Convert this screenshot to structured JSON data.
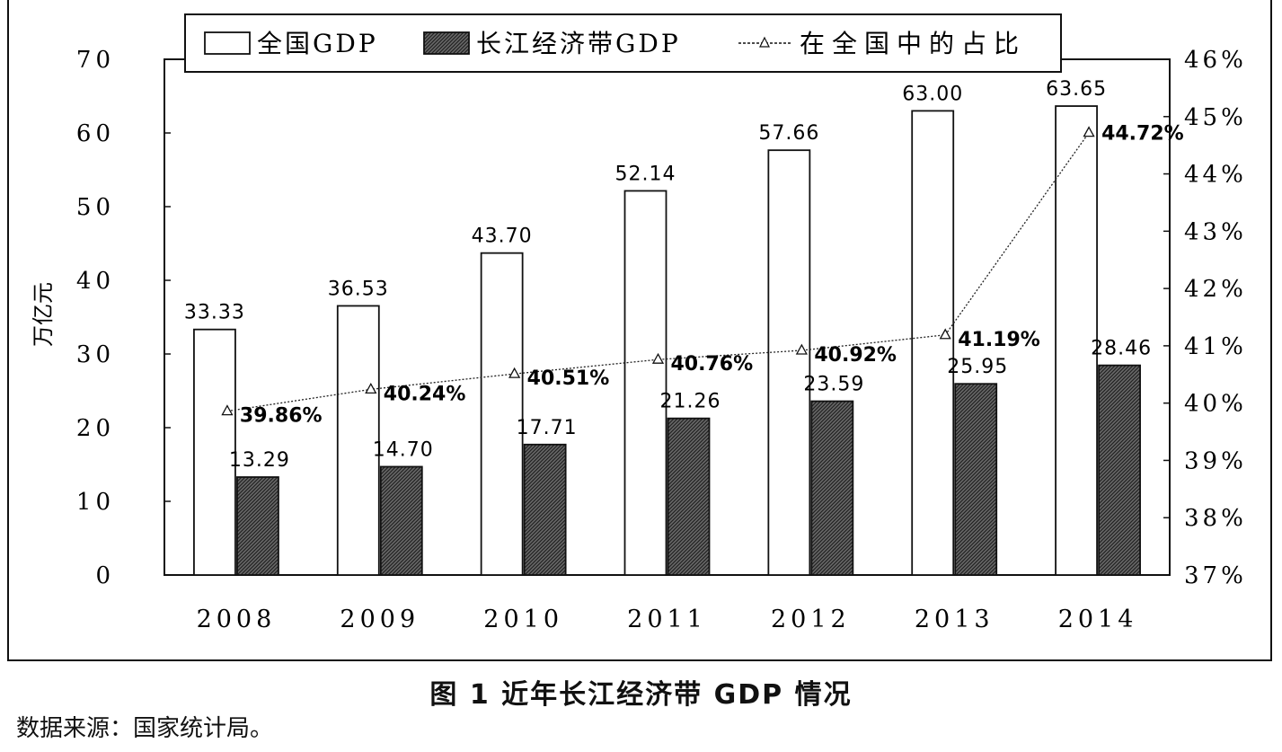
{
  "chart_data": {
    "type": "bar",
    "categories": [
      "2008",
      "2009",
      "2010",
      "2011",
      "2012",
      "2013",
      "2014"
    ],
    "series": [
      {
        "name": "全国GDP",
        "type": "bar",
        "axis": "left",
        "values": [
          33.33,
          36.53,
          43.7,
          52.14,
          57.66,
          63.0,
          63.65
        ],
        "labels": [
          "33.33",
          "36.53",
          "43.70",
          "52.14",
          "57.66",
          "63.00",
          "63.65"
        ]
      },
      {
        "name": "长江经济带GDP",
        "type": "bar",
        "axis": "left",
        "values": [
          13.29,
          14.7,
          17.71,
          21.26,
          23.59,
          25.95,
          28.46
        ],
        "labels": [
          "13.29",
          "14.70",
          "17.71",
          "21.26",
          "23.59",
          "25.95",
          "28.46"
        ]
      },
      {
        "name": "在全国中的占比",
        "type": "line",
        "axis": "right",
        "values": [
          39.86,
          40.24,
          40.51,
          40.76,
          40.92,
          41.19,
          44.72
        ],
        "labels": [
          "39.86%",
          "40.24%",
          "40.51%",
          "40.76%",
          "40.92%",
          "41.19%",
          "44.72%"
        ]
      }
    ],
    "ylabel": "万亿元",
    "ylim": [
      0,
      70
    ],
    "yticks": [
      "0",
      "10",
      "20",
      "30",
      "40",
      "50",
      "60",
      "70"
    ],
    "y2lim": [
      37,
      46
    ],
    "y2ticks": [
      "37%",
      "38%",
      "39%",
      "40%",
      "41%",
      "42%",
      "43%",
      "44%",
      "45%",
      "46%"
    ],
    "legend": "top",
    "grid": false,
    "colors": {
      "national": "#ffffff",
      "yangtze": "#444444",
      "line": "#222222"
    }
  },
  "caption": "图 1   近年长江经济带 GDP 情况",
  "source": "数据来源：国家统计局。"
}
